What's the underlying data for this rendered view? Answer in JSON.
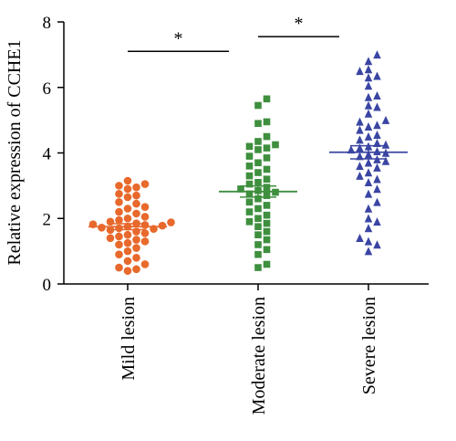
{
  "chart_data": {
    "type": "scatter",
    "ylabel": "Relative expression of CCHE1",
    "xlabel": "",
    "ylim": [
      0,
      8
    ],
    "yticks": [
      0,
      2,
      4,
      6,
      8
    ],
    "categories": [
      "Mild lesion",
      "Moderate lesion",
      "Severe lesion"
    ],
    "series": [
      {
        "category": "Mild lesion",
        "color": "#e8692c",
        "marker": "circle",
        "mean": 1.75,
        "sem_low": 1.66,
        "sem_high": 1.84,
        "values": [
          3.15,
          3.05,
          3.0,
          2.95,
          2.9,
          2.75,
          2.7,
          2.65,
          2.5,
          2.45,
          2.35,
          2.3,
          2.2,
          2.15,
          2.05,
          2.0,
          1.95,
          1.9,
          1.88,
          1.85,
          1.82,
          1.8,
          1.78,
          1.75,
          1.72,
          1.7,
          1.68,
          1.65,
          1.6,
          1.55,
          1.5,
          1.45,
          1.4,
          1.35,
          1.3,
          1.25,
          1.2,
          1.1,
          1.0,
          0.9,
          0.8,
          0.7,
          0.6,
          0.5,
          0.4,
          0.45
        ]
      },
      {
        "category": "Moderate lesion",
        "color": "#3e8f3e",
        "marker": "square",
        "mean": 2.82,
        "sem_low": 2.65,
        "sem_high": 2.99,
        "values": [
          5.65,
          5.45,
          4.95,
          4.9,
          4.5,
          4.35,
          4.25,
          4.2,
          4.15,
          4.1,
          3.9,
          3.85,
          3.7,
          3.6,
          3.5,
          3.4,
          3.3,
          3.2,
          3.1,
          3.05,
          2.95,
          2.9,
          2.85,
          2.8,
          2.75,
          2.7,
          2.6,
          2.5,
          2.4,
          2.3,
          2.2,
          2.1,
          2.0,
          1.9,
          1.85,
          1.75,
          1.6,
          1.5,
          1.35,
          1.2,
          1.05,
          0.9,
          0.6,
          0.5
        ]
      },
      {
        "category": "Severe lesion",
        "color": "#3a45a3",
        "marker": "triangle",
        "mean": 4.02,
        "sem_low": 3.82,
        "sem_high": 4.22,
        "values": [
          7.0,
          6.8,
          6.55,
          6.5,
          6.35,
          6.3,
          6.05,
          5.75,
          5.7,
          5.45,
          5.4,
          5.2,
          5.0,
          4.95,
          4.85,
          4.8,
          4.7,
          4.55,
          4.5,
          4.4,
          4.3,
          4.25,
          4.2,
          4.15,
          4.1,
          4.05,
          4.0,
          3.95,
          3.9,
          3.8,
          3.75,
          3.7,
          3.6,
          3.55,
          3.4,
          3.3,
          3.2,
          3.1,
          2.9,
          2.75,
          2.5,
          2.3,
          2.0,
          1.9,
          1.7,
          1.4,
          1.3,
          1.2,
          1.0
        ]
      }
    ],
    "significance": [
      {
        "from": 0,
        "to": 1,
        "label": "*",
        "y": 7.1
      },
      {
        "from": 1,
        "to": 2,
        "label": "*",
        "y": 7.55
      }
    ]
  }
}
